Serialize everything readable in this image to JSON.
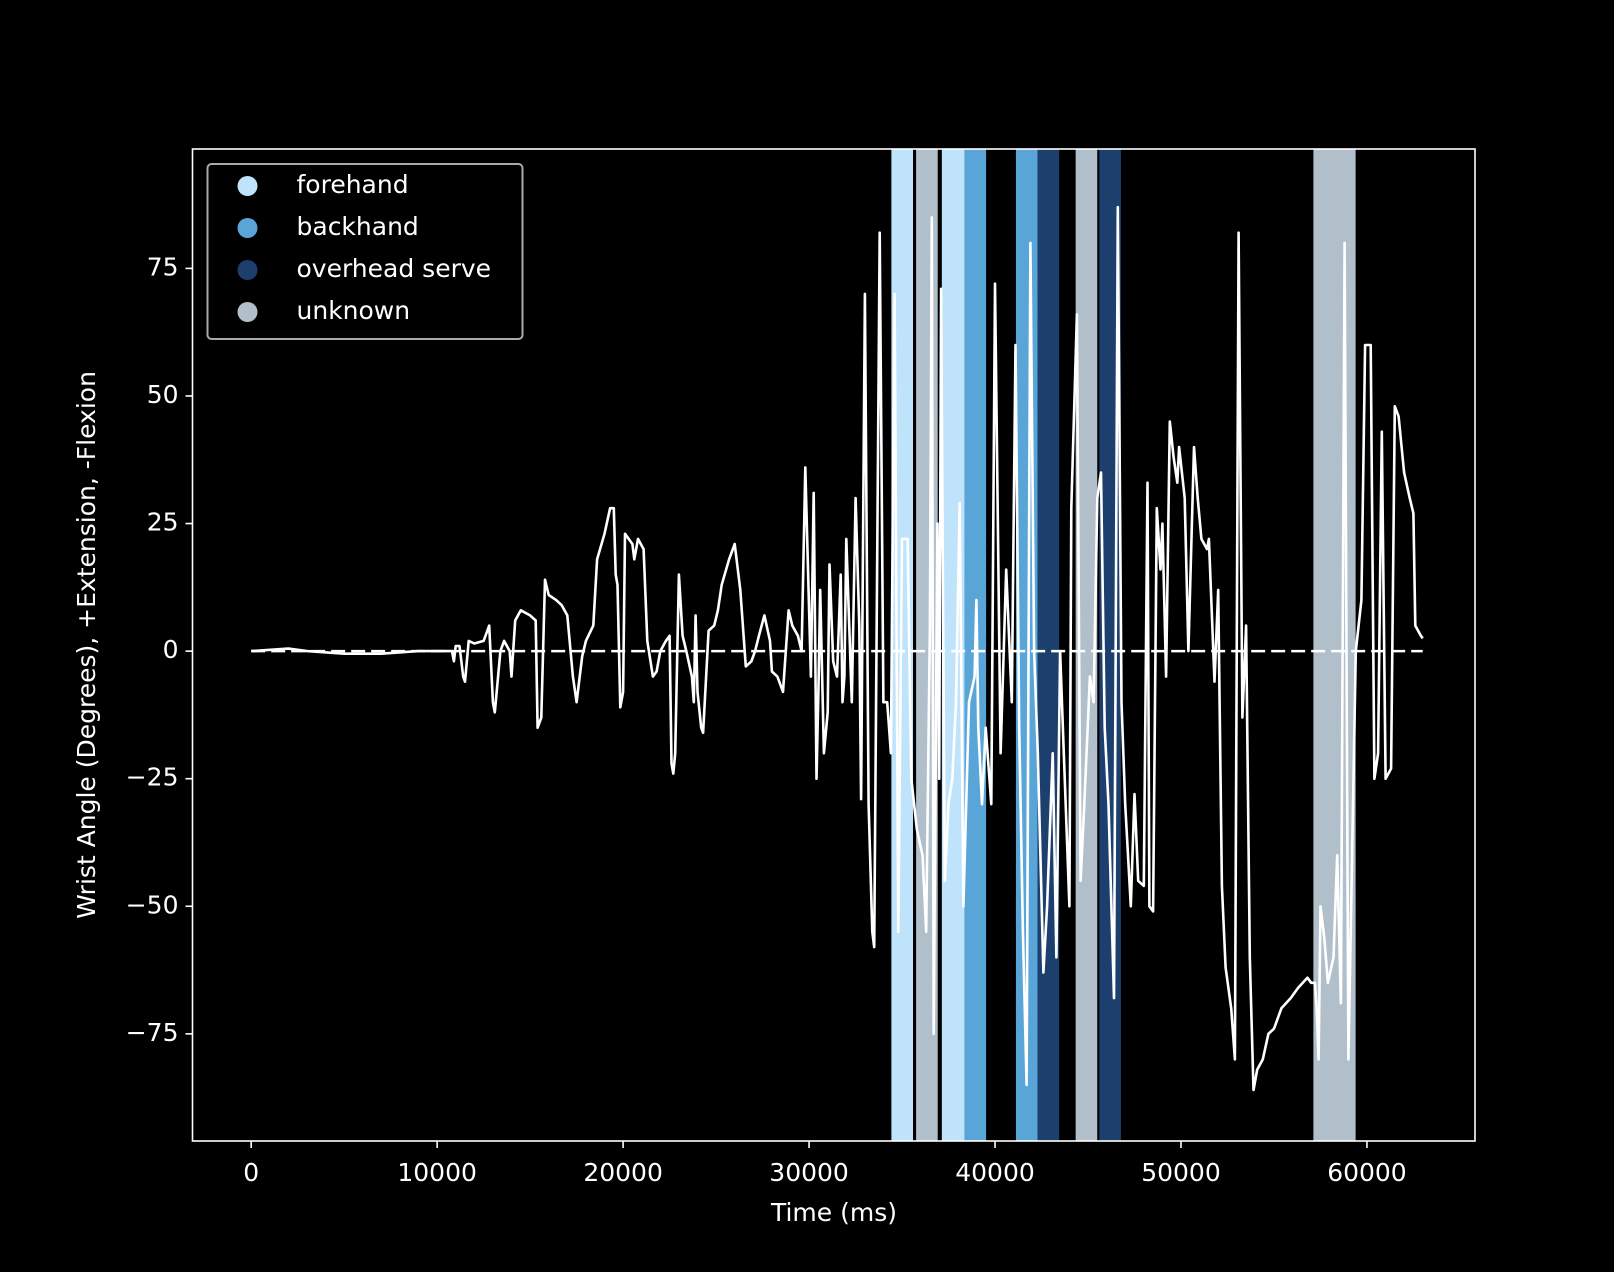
{
  "chart_data": {
    "type": "line",
    "x_label": "Time (ms)",
    "y_label": "Wrist Angle (Degrees), +Extension, -Flexion",
    "xlim": [
      -3155,
      65810
    ],
    "ylim": [
      -96,
      98.4
    ],
    "xticks": [
      0,
      10000,
      20000,
      30000,
      40000,
      50000,
      60000
    ],
    "yticks": [
      {
        "value": -75,
        "label": "−75"
      },
      {
        "value": -50,
        "label": "−50"
      },
      {
        "value": -25,
        "label": "−25"
      },
      0,
      25,
      50,
      75
    ],
    "color": "#ffffff",
    "legend": "upper left",
    "reference_line": {
      "y": 0,
      "style": "dashed",
      "color": "#ffffff"
    },
    "shaded_regions": [
      {
        "name": "forehand",
        "color": "#bfe3fb",
        "spans": [
          [
            34427,
            35590
          ],
          [
            37140,
            38357
          ]
        ]
      },
      {
        "name": "backhand",
        "color": "#5aa5d8",
        "spans": [
          [
            38357,
            39520
          ],
          [
            41125,
            42287
          ]
        ]
      },
      {
        "name": "overhead serve",
        "color": "#1c3f6e",
        "spans": [
          [
            42287,
            43450
          ],
          [
            45608,
            46770
          ]
        ]
      },
      {
        "name": "unknown",
        "color": "#b0bfca",
        "spans": [
          [
            35756,
            36918
          ],
          [
            44335,
            45497
          ],
          [
            57120,
            59390
          ]
        ]
      }
    ],
    "x": [
      0,
      2000,
      3000,
      5000,
      7000,
      9000,
      10800,
      10900,
      11000,
      11200,
      11400,
      11500,
      11700,
      12000,
      12500,
      12600,
      12800,
      13000,
      13100,
      13400,
      13600,
      13900,
      14000,
      14200,
      14500,
      15000,
      15300,
      15400,
      15600,
      15800,
      16000,
      16400,
      16700,
      17000,
      17300,
      17500,
      17800,
      18000,
      18400,
      18600,
      19000,
      19300,
      19500,
      19600,
      19700,
      19850,
      20000,
      20100,
      20500,
      20600,
      20800,
      21100,
      21300,
      21600,
      21800,
      22000,
      22300,
      22500,
      22600,
      22700,
      22800,
      23000,
      23200,
      23400,
      23700,
      23800,
      23900,
      24000,
      24200,
      24300,
      24600,
      24900,
      25100,
      25300,
      25700,
      26000,
      26300,
      26600,
      26900,
      27100,
      27300,
      27600,
      27900,
      28000,
      28300,
      28600,
      28900,
      29100,
      29400,
      29600,
      29800,
      30000,
      30100,
      30250,
      30400,
      30500,
      30600,
      30800,
      31000,
      31100,
      31300,
      31500,
      31700,
      31800,
      31900,
      32000,
      32300,
      32500,
      32700,
      32800,
      33000,
      33200,
      33400,
      33500,
      33800,
      34000,
      34200,
      34400,
      34600,
      34800,
      35000,
      35300,
      35500,
      35800,
      36100,
      36300,
      36500,
      36600,
      36700,
      36900,
      37000,
      37100,
      37300,
      37500,
      37700,
      37900,
      38100,
      38300,
      38600,
      38900,
      39000,
      39100,
      39300,
      39500,
      39800,
      40000,
      40300,
      40600,
      40900,
      41100,
      41300,
      41500,
      41700,
      41900,
      42100,
      42300,
      42600,
      42800,
      43100,
      43300,
      43500,
      43700,
      44000,
      44100,
      44400,
      44600,
      44800,
      45100,
      45300,
      45500,
      45700,
      45900,
      46100,
      46400,
      46600,
      46800,
      47000,
      47300,
      47500,
      47700,
      48000,
      48200,
      48300,
      48500,
      48700,
      48900,
      49000,
      49200,
      49400,
      49600,
      49800,
      49900,
      50200,
      50400,
      50700,
      50900,
      51100,
      51400,
      51500,
      51800,
      52000,
      52200,
      52400,
      52700,
      52900,
      53100,
      53300,
      53500,
      53700,
      53900,
      54100,
      54400,
      54700,
      55000,
      55400,
      55900,
      56300,
      56800,
      57000,
      57200,
      57300,
      57400,
      57500,
      57700,
      57900,
      58200,
      58400,
      58600,
      58800,
      59000,
      59200,
      59400,
      59700,
      59900,
      60200,
      60400,
      60600,
      60800,
      61000,
      61300,
      61500,
      61700,
      62000,
      62300,
      62500,
      62600,
      62900,
      63000
    ],
    "values": [
      0,
      0.5,
      0,
      -0.5,
      -0.5,
      0,
      0,
      -2,
      1,
      1,
      -5,
      -6,
      2,
      1.5,
      2,
      3,
      5,
      -10,
      -12,
      0,
      2,
      0,
      -5,
      6,
      8,
      7,
      6,
      -15,
      -13,
      14,
      11,
      10,
      9,
      7,
      -5,
      -10,
      -1,
      2,
      5,
      18,
      23,
      28,
      28,
      15,
      13,
      -11,
      -8,
      23,
      21,
      18,
      22,
      20,
      2,
      -5,
      -4,
      0,
      2,
      3,
      -22,
      -24,
      -20,
      15,
      3,
      0,
      -5,
      -10,
      7,
      -8,
      -15,
      -16,
      4,
      5,
      8,
      13,
      18,
      21,
      12,
      -3,
      -2,
      0,
      3,
      7,
      2,
      -4,
      -5,
      -8,
      8,
      5,
      3,
      0,
      36,
      8,
      -5,
      31,
      -25,
      -8,
      12,
      -20,
      -12,
      17,
      -2,
      -5,
      15,
      -10,
      -5,
      22,
      -10,
      30,
      5,
      -29,
      70,
      -30,
      -55,
      -58,
      82,
      -10,
      -10,
      -20,
      70,
      -55,
      22,
      22,
      -25,
      -35,
      -40,
      -55,
      5,
      85,
      -75,
      25,
      -25,
      71,
      -45,
      -30,
      -25,
      -10,
      29,
      -50,
      -10,
      -5,
      10,
      -15,
      -30,
      -15,
      -30,
      72,
      -20,
      16,
      -10,
      60,
      -15,
      -55,
      -85,
      80,
      0,
      -20,
      -63,
      -50,
      -20,
      -60,
      0,
      -20,
      -50,
      28,
      66,
      -45,
      -30,
      -5,
      -10,
      30,
      35,
      -15,
      -30,
      -68,
      87,
      -10,
      -30,
      -50,
      -28,
      -45,
      -46,
      33,
      -50,
      -51,
      28,
      16,
      25,
      -5,
      45,
      38,
      33,
      40,
      30,
      0,
      40,
      30,
      22,
      20,
      22,
      -6,
      12,
      -46,
      -62,
      -70,
      -80,
      82,
      -13,
      5,
      -60,
      -86,
      -82,
      -80,
      -75,
      -74,
      -70,
      -68,
      -66,
      -64,
      -65,
      -65,
      -70,
      -80,
      -50,
      -56,
      -65,
      -60,
      -40,
      -69,
      80,
      -80,
      -40,
      0,
      10,
      60,
      60,
      -25,
      -20,
      43,
      -25,
      -23,
      48,
      46,
      35,
      30,
      27,
      5,
      3,
      2.5
    ]
  }
}
